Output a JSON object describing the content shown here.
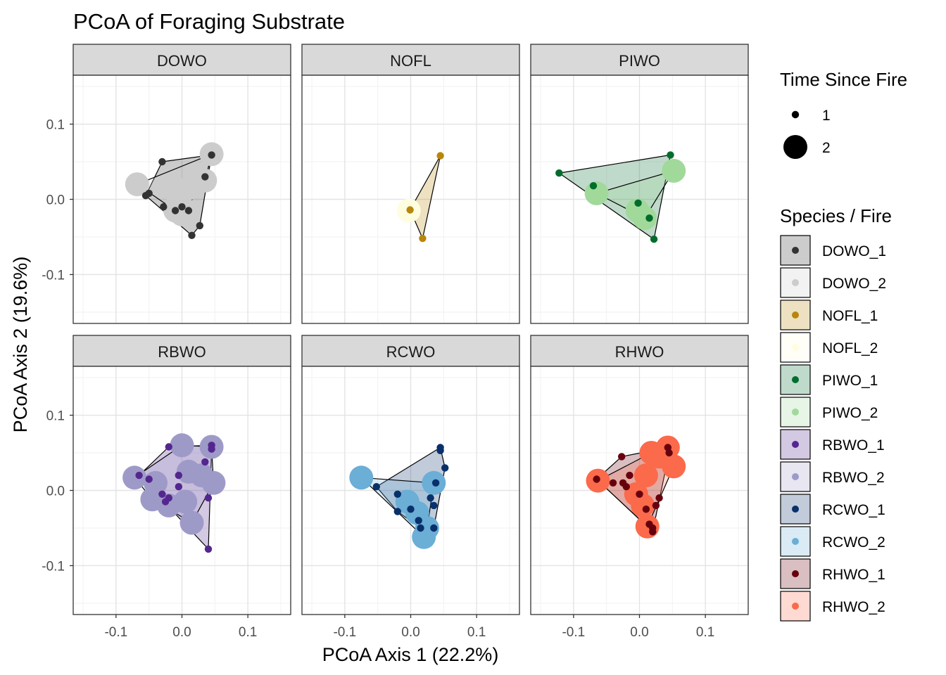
{
  "chart_data": {
    "type": "scatter",
    "title": "PCoA of Foraging Substrate",
    "xlabel": "PCoA Axis 1 (22.2%)",
    "ylabel": "PCoA Axis 2 (19.6%)",
    "xlim": [
      -0.165,
      0.165
    ],
    "ylim": [
      -0.165,
      0.165
    ],
    "xticks": [
      -0.1,
      0.0,
      0.1
    ],
    "xtick_labels": [
      "-0.1",
      "0.0",
      "0.1"
    ],
    "yticks": [
      -0.1,
      0.0,
      0.1
    ],
    "ytick_labels": [
      "-0.1",
      "0.0",
      "0.1"
    ],
    "grid": true,
    "hulls": true,
    "size_legend": {
      "title": "Time Since Fire",
      "levels": [
        {
          "label": "1",
          "value": 1
        },
        {
          "label": "2",
          "value": 2
        }
      ]
    },
    "color_legend": {
      "title": "Species / Fire",
      "entries": [
        {
          "label": "DOWO_1",
          "color": "#333333"
        },
        {
          "label": "DOWO_2",
          "color": "#cccccc"
        },
        {
          "label": "NOFL_1",
          "color": "#b8860b"
        },
        {
          "label": "NOFL_2",
          "color": "#fffde0"
        },
        {
          "label": "PIWO_1",
          "color": "#006d2c"
        },
        {
          "label": "PIWO_2",
          "color": "#a1d99b"
        },
        {
          "label": "RBWO_1",
          "color": "#54278f"
        },
        {
          "label": "RBWO_2",
          "color": "#9e9ac8"
        },
        {
          "label": "RCWO_1",
          "color": "#08306b"
        },
        {
          "label": "RCWO_2",
          "color": "#6baed6"
        },
        {
          "label": "RHWO_1",
          "color": "#67000d"
        },
        {
          "label": "RHWO_2",
          "color": "#fb6a4a"
        }
      ]
    },
    "panels": [
      {
        "name": "DOWO",
        "groups": [
          {
            "label": "DOWO_1",
            "fire": 1,
            "color": "#333333",
            "points": [
              [
                -0.03,
                0.05
              ],
              [
                0.045,
                0.059
              ],
              [
                0.035,
                0.03
              ],
              [
                -0.05,
                0.008
              ],
              [
                -0.055,
                0.005
              ],
              [
                -0.028,
                -0.01
              ],
              [
                -0.01,
                -0.015
              ],
              [
                0.0,
                -0.01
              ],
              [
                0.027,
                -0.035
              ],
              [
                0.015,
                -0.048
              ],
              [
                0.01,
                -0.015
              ]
            ]
          },
          {
            "label": "DOWO_2",
            "color": "#cccccc",
            "fire": 2,
            "points": [
              [
                -0.068,
                0.02
              ],
              [
                0.045,
                0.06
              ],
              [
                0.035,
                0.025
              ],
              [
                0.01,
                0.015
              ],
              [
                -0.005,
                0.0
              ],
              [
                0.0,
                -0.01
              ],
              [
                -0.01,
                -0.015
              ],
              [
                0.0,
                -0.02
              ]
            ]
          }
        ]
      },
      {
        "name": "NOFL",
        "groups": [
          {
            "label": "NOFL_1",
            "fire": 1,
            "color": "#b8860b",
            "points": [
              [
                0.045,
                0.058
              ],
              [
                -0.001,
                -0.014
              ],
              [
                0.018,
                -0.052
              ]
            ]
          },
          {
            "label": "NOFL_2",
            "fire": 2,
            "color": "#fffde0",
            "points": [
              [
                -0.003,
                -0.015
              ]
            ]
          }
        ]
      },
      {
        "name": "PIWO",
        "groups": [
          {
            "label": "PIWO_1",
            "fire": 1,
            "color": "#006d2c",
            "points": [
              [
                -0.122,
                0.035
              ],
              [
                -0.07,
                0.018
              ],
              [
                0.047,
                0.059
              ],
              [
                -0.002,
                -0.005
              ],
              [
                0.022,
                -0.053
              ],
              [
                0.015,
                -0.025
              ]
            ]
          },
          {
            "label": "PIWO_2",
            "fire": 2,
            "color": "#a1d99b",
            "points": [
              [
                -0.065,
                0.008
              ],
              [
                0.052,
                0.038
              ],
              [
                -0.003,
                -0.015
              ],
              [
                0.008,
                -0.025
              ]
            ]
          }
        ]
      },
      {
        "name": "RBWO",
        "groups": [
          {
            "label": "RBWO_1",
            "fire": 1,
            "color": "#54278f",
            "points": [
              [
                -0.02,
                0.058
              ],
              [
                0.045,
                0.055
              ],
              [
                0.045,
                0.06
              ],
              [
                0.035,
                0.038
              ],
              [
                -0.065,
                0.02
              ],
              [
                -0.005,
                0.02
              ],
              [
                -0.005,
                0.005
              ],
              [
                -0.02,
                -0.01
              ],
              [
                -0.025,
                -0.015
              ],
              [
                0.04,
                -0.01
              ],
              [
                0.04,
                -0.078
              ],
              [
                -0.05,
                0.015
              ],
              [
                -0.03,
                -0.005
              ]
            ]
          },
          {
            "label": "RBWO_2",
            "fire": 2,
            "color": "#9e9ac8",
            "points": [
              [
                0.0,
                0.06
              ],
              [
                0.045,
                0.058
              ],
              [
                -0.072,
                0.017
              ],
              [
                -0.04,
                0.01
              ],
              [
                0.01,
                0.025
              ],
              [
                0.03,
                0.02
              ],
              [
                0.048,
                0.01
              ],
              [
                -0.045,
                -0.012
              ],
              [
                -0.02,
                -0.02
              ],
              [
                0.005,
                -0.015
              ],
              [
                0.015,
                -0.043
              ]
            ]
          }
        ]
      },
      {
        "name": "RCWO",
        "groups": [
          {
            "label": "RCWO_1",
            "fire": 1,
            "color": "#08306b",
            "points": [
              [
                0.045,
                0.057
              ],
              [
                0.045,
                0.053
              ],
              [
                0.052,
                0.03
              ],
              [
                0.038,
                0.01
              ],
              [
                -0.052,
                0.005
              ],
              [
                -0.02,
                -0.005
              ],
              [
                0.03,
                -0.01
              ],
              [
                0.035,
                -0.02
              ],
              [
                0.0,
                -0.025
              ],
              [
                0.012,
                -0.04
              ],
              [
                -0.02,
                -0.028
              ],
              [
                0.015,
                -0.05
              ],
              [
                0.035,
                -0.05
              ]
            ]
          },
          {
            "label": "RCWO_2",
            "fire": 2,
            "color": "#6baed6",
            "points": [
              [
                -0.075,
                0.017
              ],
              [
                0.035,
                0.01
              ],
              [
                -0.005,
                -0.015
              ],
              [
                0.01,
                -0.03
              ],
              [
                0.025,
                -0.05
              ],
              [
                0.02,
                -0.062
              ]
            ]
          }
        ]
      },
      {
        "name": "RHWO",
        "groups": [
          {
            "label": "RHWO_1",
            "fire": 1,
            "color": "#67000d",
            "points": [
              [
                -0.027,
                0.045
              ],
              [
                0.043,
                0.057
              ],
              [
                0.045,
                0.05
              ],
              [
                -0.065,
                0.015
              ],
              [
                -0.015,
                0.02
              ],
              [
                -0.04,
                0.01
              ],
              [
                -0.025,
                0.01
              ],
              [
                -0.02,
                0.005
              ],
              [
                0.0,
                -0.005
              ],
              [
                0.03,
                -0.01
              ],
              [
                0.025,
                -0.02
              ],
              [
                0.01,
                -0.025
              ],
              [
                0.02,
                -0.05
              ],
              [
                0.02,
                -0.055
              ],
              [
                0.015,
                -0.045
              ]
            ]
          },
          {
            "label": "RHWO_2",
            "fire": 2,
            "color": "#fb6a4a",
            "points": [
              [
                0.043,
                0.057
              ],
              [
                0.03,
                0.045
              ],
              [
                0.018,
                0.05
              ],
              [
                0.052,
                0.032
              ],
              [
                0.01,
                0.02
              ],
              [
                -0.063,
                0.013
              ],
              [
                -0.005,
                -0.005
              ],
              [
                0.005,
                -0.02
              ],
              [
                0.012,
                -0.048
              ]
            ]
          }
        ]
      }
    ]
  }
}
